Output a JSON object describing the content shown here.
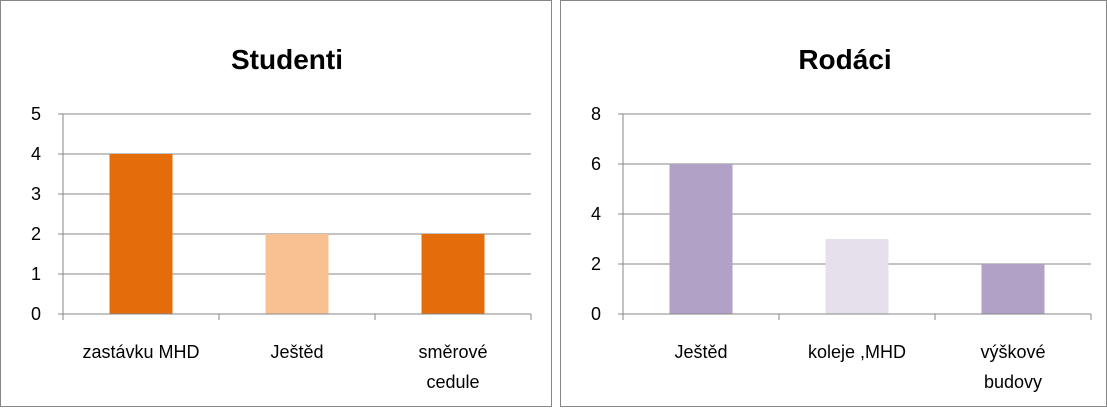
{
  "chart_data": [
    {
      "type": "bar",
      "title": "Studenti",
      "categories": [
        [
          "zastávku MHD"
        ],
        [
          "Ještěd"
        ],
        [
          "směrové",
          "cedule"
        ]
      ],
      "values": [
        4,
        2,
        2
      ],
      "colors": [
        "#E46C0A",
        "#F9C192",
        "#E46C0A"
      ],
      "ylim": [
        0,
        5
      ],
      "yticks": [
        "0",
        "1",
        "2",
        "3",
        "4",
        "5"
      ],
      "grid": true
    },
    {
      "type": "bar",
      "title": "Rodáci",
      "categories": [
        [
          "Ještěd"
        ],
        [
          "koleje ,MHD"
        ],
        [
          "výškové",
          "budovy"
        ]
      ],
      "values": [
        6,
        3,
        2
      ],
      "colors": [
        "#B2A1C7",
        "#E5E0EC",
        "#B2A1C7"
      ],
      "ylim": [
        0,
        8
      ],
      "yticks": [
        "0",
        "2",
        "4",
        "6",
        "8"
      ],
      "grid": true
    }
  ]
}
